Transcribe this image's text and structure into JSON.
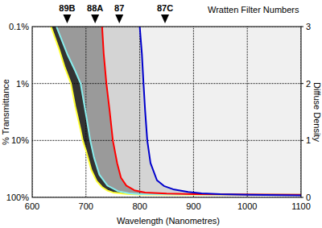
{
  "chart_data": {
    "type": "line",
    "title": "Wratten Filter Numbers",
    "x_label": "Wavelength (Nanometres)",
    "y_label": "% Transmittance",
    "y2_label": "Diffuse Density",
    "xlim": [
      600,
      1100
    ],
    "xticks": [
      600,
      700,
      800,
      900,
      1000,
      1100
    ],
    "log": "y",
    "ylim": [
      100,
      0.1
    ],
    "yticks": [
      {
        "value": 0.1,
        "label": "0.1%"
      },
      {
        "value": 1,
        "label": "1%"
      },
      {
        "value": 10,
        "label": "10%"
      },
      {
        "value": 100,
        "label": "100%"
      }
    ],
    "y2lim": [
      0,
      3
    ],
    "y2ticks": [
      0,
      1,
      2,
      3
    ],
    "grid": true,
    "series": [
      {
        "name": "89B",
        "color": "#ffff33",
        "label_x": 665,
        "x": [
          635,
          650,
          660,
          672,
          680,
          690,
          694,
          700,
          710,
          720,
          730,
          740,
          750,
          775,
          800,
          1100
        ],
        "values": [
          0.1,
          0.25,
          0.5,
          1,
          2.5,
          6.5,
          10,
          15,
          33,
          52,
          66,
          76,
          82,
          87,
          89,
          90
        ]
      },
      {
        "name": "88A",
        "color": "#88eeee",
        "label_x": 717,
        "x": [
          645,
          665,
          680,
          690,
          700,
          708,
          715,
          725,
          740,
          760,
          780,
          800,
          1100
        ],
        "values": [
          0.1,
          0.3,
          0.6,
          1,
          3.5,
          10,
          20,
          40,
          62,
          78,
          85,
          88,
          90
        ]
      },
      {
        "name": "87",
        "color": "#ff0000",
        "label_x": 762,
        "x": [
          730,
          733,
          738,
          744,
          750,
          758,
          765,
          775,
          790,
          810,
          850,
          900,
          1100
        ],
        "values": [
          0.1,
          0.3,
          1,
          3,
          10,
          25,
          45,
          62,
          75,
          82,
          86,
          88,
          90
        ]
      },
      {
        "name": "87C",
        "color": "#0000cc",
        "label_x": 847,
        "x": [
          800,
          804,
          807,
          810,
          814,
          820,
          832,
          845,
          862,
          890,
          915,
          950,
          1000,
          1100
        ],
        "values": [
          0.1,
          0.3,
          1,
          3,
          10,
          25,
          50,
          63,
          72,
          80,
          85,
          88,
          90,
          92
        ]
      }
    ]
  }
}
